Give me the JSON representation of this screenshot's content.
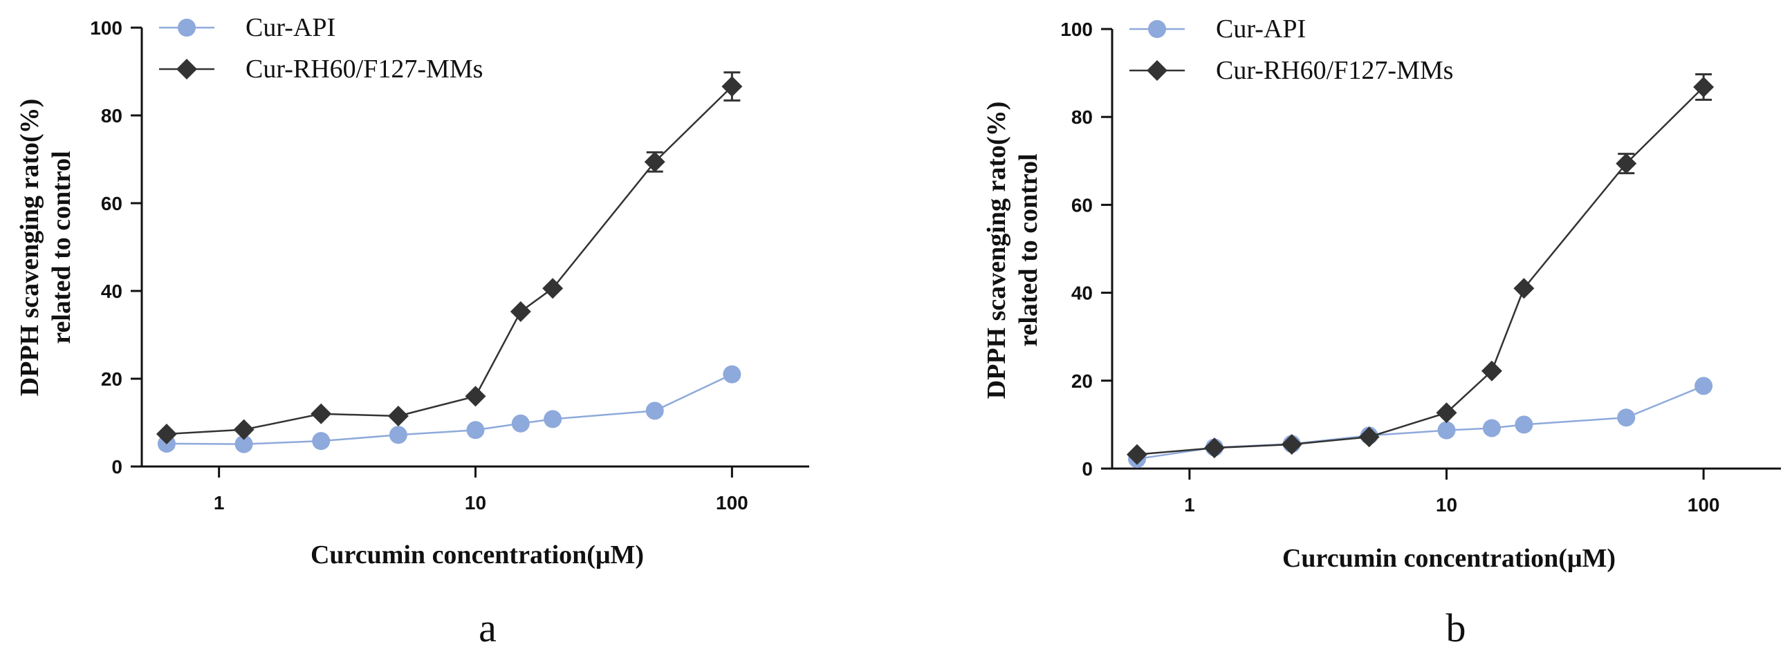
{
  "colors": {
    "api": "#8EA9DB",
    "mm": "#333333"
  },
  "chart_data": [
    {
      "type": "line",
      "panel_label": "a",
      "xlabel": "Curcumin concentration(μM)",
      "ylabel": [
        "DPPH scavenging rato(%)",
        "related to control"
      ],
      "xscale": "log",
      "xlim": [
        0.5,
        200
      ],
      "ylim": [
        0,
        100
      ],
      "xticks": [
        1,
        10,
        100
      ],
      "xtick_labels": [
        "1",
        "10",
        "100"
      ],
      "yticks": [
        0,
        20,
        40,
        60,
        80,
        100
      ],
      "ytick_labels": [
        "0",
        "20",
        "40",
        "60",
        "80",
        "100"
      ],
      "legend_position": "top-left",
      "series": [
        {
          "name": "Cur-API",
          "marker": "circle",
          "color": "#8EA9DB",
          "x": [
            0.625,
            1.25,
            2.5,
            5,
            10,
            15,
            20,
            50,
            100
          ],
          "y": [
            5.2,
            5.1,
            5.8,
            7.2,
            8.3,
            9.8,
            10.8,
            12.7,
            21.0
          ]
        },
        {
          "name": "Cur-RH60/F127-MMs",
          "marker": "diamond",
          "color": "#333333",
          "x": [
            0.625,
            1.25,
            2.5,
            5,
            10,
            15,
            20,
            50,
            100
          ],
          "y": [
            7.4,
            8.4,
            12.0,
            11.5,
            16.0,
            35.3,
            40.6,
            69.4,
            86.6
          ],
          "err": [
            0,
            0,
            0,
            0,
            0,
            0,
            0,
            2.2,
            3.2
          ]
        }
      ]
    },
    {
      "type": "line",
      "panel_label": "b",
      "xlabel": "Curcumin concentration(μM)",
      "ylabel": [
        "DPPH scavenging rato(%)",
        "related to control"
      ],
      "xscale": "log",
      "xlim": [
        0.5,
        200
      ],
      "ylim": [
        0,
        100
      ],
      "xticks": [
        1,
        10,
        100
      ],
      "xtick_labels": [
        "1",
        "10",
        "100"
      ],
      "yticks": [
        0,
        20,
        40,
        60,
        80,
        100
      ],
      "ytick_labels": [
        "0",
        "20",
        "40",
        "60",
        "80",
        "100"
      ],
      "legend_position": "top-left",
      "series": [
        {
          "name": "Cur-API",
          "marker": "circle",
          "color": "#8EA9DB",
          "x": [
            0.625,
            1.25,
            2.5,
            5,
            10,
            15,
            20,
            50,
            100
          ],
          "y": [
            2.2,
            4.8,
            5.6,
            7.5,
            8.7,
            9.2,
            10.0,
            11.6,
            18.8
          ]
        },
        {
          "name": "Cur-RH60/F127-MMs",
          "marker": "diamond",
          "color": "#333333",
          "x": [
            0.625,
            1.25,
            2.5,
            5,
            10,
            15,
            20,
            50,
            100
          ],
          "y": [
            3.2,
            4.7,
            5.5,
            7.2,
            12.7,
            22.2,
            41.0,
            69.4,
            86.8
          ],
          "err": [
            0,
            0,
            0,
            0,
            0,
            0,
            0,
            2.2,
            2.9
          ]
        }
      ]
    }
  ]
}
